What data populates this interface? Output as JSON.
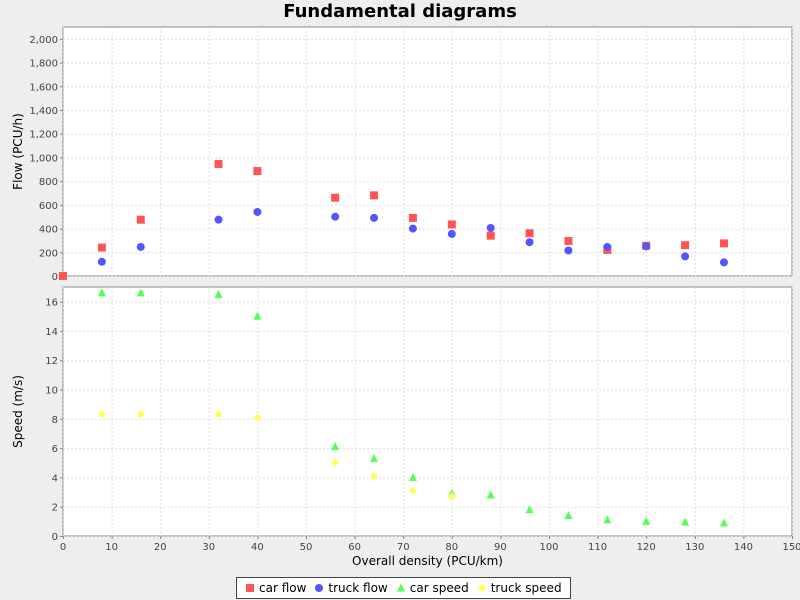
{
  "chart_data": {
    "type": "scatter",
    "title": "Fundamental diagrams",
    "xlabel": "Overall density (PCU/km)",
    "xlim": [
      0,
      150
    ],
    "xticks": [
      0,
      10,
      20,
      30,
      40,
      50,
      60,
      70,
      80,
      90,
      100,
      110,
      120,
      130,
      140,
      150
    ],
    "grid": true,
    "legend_position": "bottom",
    "subplots": [
      {
        "ylabel": "Flow (PCU/h)",
        "ylim": [
          0,
          2100
        ],
        "yticks": [
          0,
          200,
          400,
          600,
          800,
          1000,
          1200,
          1400,
          1600,
          1800,
          2000
        ],
        "ytick_labels": [
          "0",
          "200",
          "400",
          "600",
          "800",
          "1,000",
          "1,200",
          "1,400",
          "1,600",
          "1,800",
          "2,000"
        ],
        "series": [
          {
            "name": "car flow",
            "marker": "square",
            "color": "#ff5555",
            "x": [
              0,
              8,
              16,
              32,
              40,
              56,
              64,
              72,
              80,
              88,
              96,
              104,
              112,
              120,
              128,
              136
            ],
            "y": [
              0,
              240,
              475,
              945,
              885,
              660,
              680,
              490,
              435,
              340,
              360,
              295,
              220,
              255,
              260,
              275
            ]
          },
          {
            "name": "truck flow",
            "marker": "circle",
            "color": "#5555ff",
            "x": [
              8,
              16,
              32,
              40,
              56,
              64,
              72,
              80,
              88,
              96,
              104,
              112,
              120,
              128,
              136
            ],
            "y": [
              120,
              245,
              475,
              540,
              500,
              490,
              400,
              355,
              405,
              285,
              215,
              245,
              250,
              165,
              115
            ]
          }
        ]
      },
      {
        "ylabel": "Speed (m/s)",
        "ylim": [
          0,
          17
        ],
        "yticks": [
          0,
          2,
          4,
          6,
          8,
          10,
          12,
          14,
          16
        ],
        "ytick_labels": [
          "0",
          "2",
          "4",
          "6",
          "8",
          "10",
          "12",
          "14",
          "16"
        ],
        "series": [
          {
            "name": "car speed",
            "marker": "triangle",
            "color": "#55ff55",
            "x": [
              8,
              16,
              32,
              40,
              56,
              64,
              72,
              80,
              88,
              96,
              104,
              112,
              120,
              128,
              136
            ],
            "y": [
              16.6,
              16.6,
              16.5,
              15.0,
              6.1,
              5.3,
              4.0,
              2.9,
              2.8,
              1.8,
              1.4,
              1.1,
              1.0,
              0.95,
              0.9
            ]
          },
          {
            "name": "truck speed",
            "marker": "diamond",
            "color": "#ffff55",
            "x": [
              8,
              16,
              32,
              40,
              56,
              64,
              72,
              80
            ],
            "y": [
              8.3,
              8.3,
              8.3,
              8.1,
              5.0,
              4.1,
              3.1,
              2.7
            ]
          }
        ]
      }
    ]
  }
}
